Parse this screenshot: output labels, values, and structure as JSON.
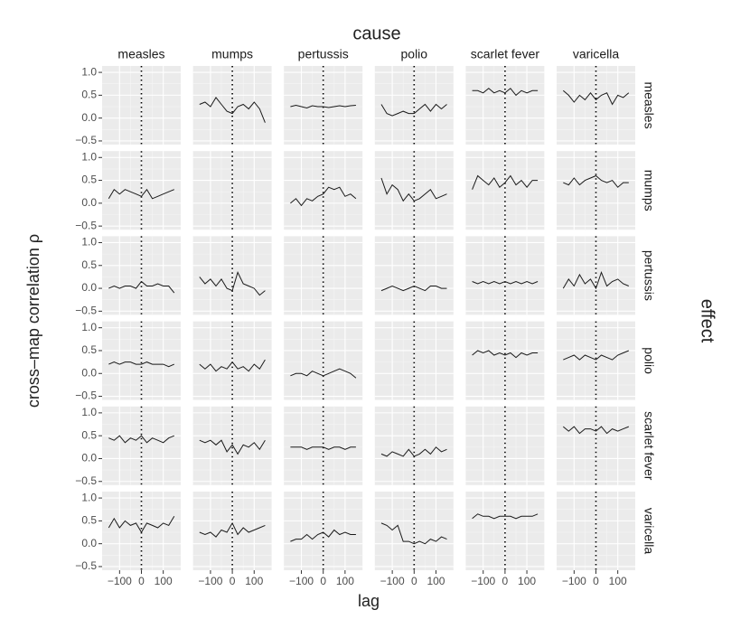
{
  "chart_data": {
    "type": "line",
    "title": "cause",
    "row_title": "effect",
    "y_label": "cross–map correlation ρ",
    "x_label": "lag",
    "causes": [
      "measles",
      "mumps",
      "pertussis",
      "polio",
      "scarlet fever",
      "varicella"
    ],
    "effects": [
      "measles",
      "mumps",
      "pertussis",
      "polio",
      "scarlet fever",
      "varicella"
    ],
    "x": [
      -150,
      -125,
      -100,
      -75,
      -50,
      -25,
      0,
      25,
      50,
      75,
      100,
      125,
      150
    ],
    "xlim": [
      -180,
      180
    ],
    "ylim": [
      -0.58,
      1.14
    ],
    "xticks": [
      {
        "value": -100,
        "label": "−100"
      },
      0,
      100
    ],
    "yticks": [
      {
        "value": 1,
        "label": "1.0"
      },
      0.5,
      {
        "value": 0,
        "label": "0.0"
      },
      {
        "value": -0.5,
        "label": "−0.5"
      }
    ],
    "vline_x": 0,
    "color": "#1a1a1a",
    "grid": true,
    "rows": [
      [
        null,
        [
          0.3,
          0.35,
          0.25,
          0.45,
          0.3,
          0.15,
          0.1,
          0.25,
          0.3,
          0.2,
          0.35,
          0.2,
          -0.1
        ],
        [
          0.25,
          0.28,
          0.25,
          0.22,
          0.27,
          0.25,
          0.25,
          0.23,
          0.25,
          0.27,
          0.25,
          0.27,
          0.28
        ],
        [
          0.3,
          0.1,
          0.05,
          0.1,
          0.15,
          0.1,
          0.1,
          0.2,
          0.3,
          0.15,
          0.3,
          0.2,
          0.3
        ],
        [
          0.6,
          0.6,
          0.55,
          0.65,
          0.55,
          0.6,
          0.55,
          0.65,
          0.5,
          0.6,
          0.55,
          0.6,
          0.6
        ],
        [
          0.6,
          0.5,
          0.35,
          0.5,
          0.4,
          0.55,
          0.4,
          0.5,
          0.55,
          0.3,
          0.5,
          0.45,
          0.55
        ]
      ],
      [
        [
          0.1,
          0.3,
          0.2,
          0.3,
          0.25,
          0.2,
          0.15,
          0.3,
          0.1,
          0.15,
          0.2,
          0.25,
          0.3
        ],
        null,
        [
          0.0,
          0.1,
          -0.05,
          0.1,
          0.05,
          0.15,
          0.2,
          0.35,
          0.3,
          0.35,
          0.15,
          0.2,
          0.1
        ],
        [
          0.55,
          0.2,
          0.4,
          0.3,
          0.05,
          0.2,
          0.05,
          0.1,
          0.2,
          0.3,
          0.1,
          0.15,
          0.2
        ],
        [
          0.3,
          0.6,
          0.5,
          0.4,
          0.55,
          0.35,
          0.45,
          0.6,
          0.4,
          0.5,
          0.35,
          0.5,
          0.5
        ],
        [
          0.45,
          0.4,
          0.55,
          0.4,
          0.5,
          0.55,
          0.6,
          0.5,
          0.45,
          0.5,
          0.35,
          0.45,
          0.45
        ]
      ],
      [
        [
          0.0,
          0.05,
          0.0,
          0.05,
          0.05,
          0.0,
          0.15,
          0.05,
          0.05,
          0.1,
          0.05,
          0.05,
          -0.1
        ],
        [
          0.25,
          0.1,
          0.2,
          0.05,
          0.2,
          0.0,
          -0.05,
          0.35,
          0.1,
          0.05,
          0.0,
          -0.15,
          -0.05
        ],
        null,
        [
          -0.05,
          0.0,
          0.05,
          0.0,
          -0.05,
          0.0,
          0.05,
          0.0,
          -0.05,
          0.05,
          0.05,
          0.0,
          0.0
        ],
        [
          0.15,
          0.1,
          0.15,
          0.1,
          0.15,
          0.1,
          0.15,
          0.1,
          0.15,
          0.1,
          0.15,
          0.1,
          0.15
        ],
        [
          0.0,
          0.2,
          0.05,
          0.3,
          0.1,
          0.2,
          0.0,
          0.35,
          0.05,
          0.15,
          0.2,
          0.1,
          0.05
        ]
      ],
      [
        [
          0.2,
          0.25,
          0.2,
          0.25,
          0.25,
          0.2,
          0.2,
          0.25,
          0.2,
          0.2,
          0.2,
          0.15,
          0.2
        ],
        [
          0.2,
          0.1,
          0.2,
          0.05,
          0.15,
          0.1,
          0.25,
          0.1,
          0.15,
          0.05,
          0.2,
          0.1,
          0.3
        ],
        [
          -0.05,
          0.0,
          0.0,
          -0.05,
          0.05,
          0.0,
          -0.05,
          0.0,
          0.05,
          0.1,
          0.05,
          0.0,
          -0.1
        ],
        null,
        [
          0.4,
          0.5,
          0.45,
          0.5,
          0.4,
          0.45,
          0.4,
          0.45,
          0.35,
          0.45,
          0.4,
          0.45,
          0.45
        ],
        [
          0.3,
          0.35,
          0.4,
          0.3,
          0.4,
          0.35,
          0.3,
          0.4,
          0.35,
          0.3,
          0.4,
          0.45,
          0.5
        ]
      ],
      [
        [
          0.45,
          0.4,
          0.5,
          0.35,
          0.45,
          0.4,
          0.5,
          0.35,
          0.45,
          0.4,
          0.35,
          0.45,
          0.5
        ],
        [
          0.4,
          0.35,
          0.4,
          0.3,
          0.4,
          0.15,
          0.3,
          0.1,
          0.3,
          0.25,
          0.35,
          0.2,
          0.4
        ],
        [
          0.25,
          0.25,
          0.25,
          0.2,
          0.25,
          0.25,
          0.25,
          0.2,
          0.25,
          0.25,
          0.2,
          0.25,
          0.25
        ],
        [
          0.1,
          0.05,
          0.15,
          0.1,
          0.05,
          0.2,
          0.05,
          0.1,
          0.2,
          0.1,
          0.25,
          0.15,
          0.2
        ],
        null,
        [
          0.7,
          0.6,
          0.7,
          0.55,
          0.65,
          0.65,
          0.6,
          0.7,
          0.55,
          0.65,
          0.6,
          0.65,
          0.7
        ]
      ],
      [
        [
          0.35,
          0.55,
          0.35,
          0.5,
          0.4,
          0.45,
          0.25,
          0.45,
          0.4,
          0.35,
          0.45,
          0.4,
          0.6
        ],
        [
          0.25,
          0.2,
          0.25,
          0.15,
          0.3,
          0.25,
          0.45,
          0.2,
          0.35,
          0.25,
          0.3,
          0.35,
          0.4
        ],
        [
          0.05,
          0.1,
          0.1,
          0.2,
          0.1,
          0.2,
          0.25,
          0.15,
          0.3,
          0.2,
          0.25,
          0.2,
          0.2
        ],
        [
          0.45,
          0.4,
          0.3,
          0.4,
          0.05,
          0.05,
          0.0,
          0.05,
          0.0,
          0.1,
          0.05,
          0.15,
          0.1
        ],
        [
          0.55,
          0.65,
          0.6,
          0.6,
          0.55,
          0.6,
          0.6,
          0.6,
          0.55,
          0.6,
          0.6,
          0.6,
          0.65
        ],
        null
      ]
    ]
  }
}
